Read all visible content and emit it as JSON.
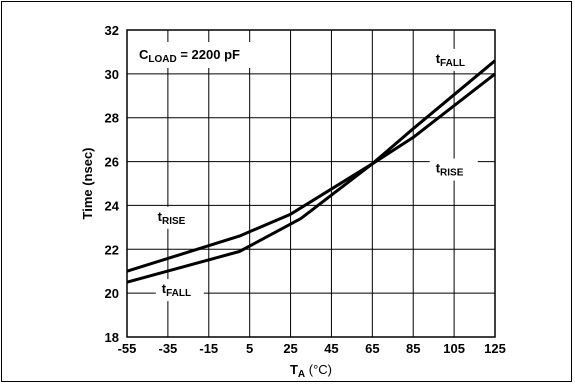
{
  "chart_data": {
    "type": "line",
    "xlabel": {
      "main": "T",
      "sub": "A",
      "unit": " (°C)"
    },
    "ylabel": "Time (nsec)",
    "xlim": [
      -55,
      125
    ],
    "ylim": [
      18,
      32
    ],
    "x_ticks": [
      "-55",
      "-35",
      "-15",
      "5",
      "25",
      "45",
      "65",
      "85",
      "105",
      "125"
    ],
    "y_ticks": [
      "18",
      "20",
      "22",
      "24",
      "26",
      "28",
      "30",
      "32"
    ],
    "grid": true,
    "condition": {
      "main": "C",
      "sub": "LOAD",
      "rest": " = 2200 pF"
    },
    "series": [
      {
        "name": "tRISE",
        "color": "#000000",
        "x": [
          -55,
          0,
          25,
          65,
          85,
          125
        ],
        "y": [
          21.0,
          22.6,
          23.6,
          25.9,
          27.1,
          30.0
        ]
      },
      {
        "name": "tFALL",
        "color": "#000000",
        "x": [
          -55,
          0,
          30,
          65,
          85,
          125
        ],
        "y": [
          20.5,
          21.9,
          23.4,
          25.9,
          27.5,
          30.6
        ]
      }
    ],
    "annotations": [
      {
        "main": "t",
        "sub": "RISE",
        "x": -40,
        "y": 23.3
      },
      {
        "main": "t",
        "sub": "FALL",
        "x": -38,
        "y": 20.0
      },
      {
        "main": "t",
        "sub": "FALL",
        "x": 96,
        "y": 30.5
      },
      {
        "main": "t",
        "sub": "RISE",
        "x": 96,
        "y": 25.5
      }
    ]
  }
}
